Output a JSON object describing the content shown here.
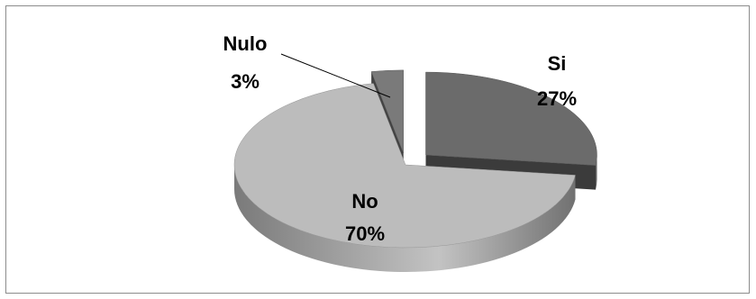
{
  "chart_data": {
    "type": "pie",
    "style": "3d-exploded",
    "title": "",
    "categories": [
      "Si",
      "No",
      "Nulo"
    ],
    "values": [
      27,
      70,
      3
    ],
    "labels": [
      {
        "category": "Si",
        "percent": "27%"
      },
      {
        "category": "No",
        "percent": "70%"
      },
      {
        "category": "Nulo",
        "percent": "3%"
      }
    ],
    "legend": "none",
    "colors": {
      "Si": "#6b6b6b",
      "No": "#bcbcbc",
      "Nulo": "#7a7a7a"
    }
  }
}
